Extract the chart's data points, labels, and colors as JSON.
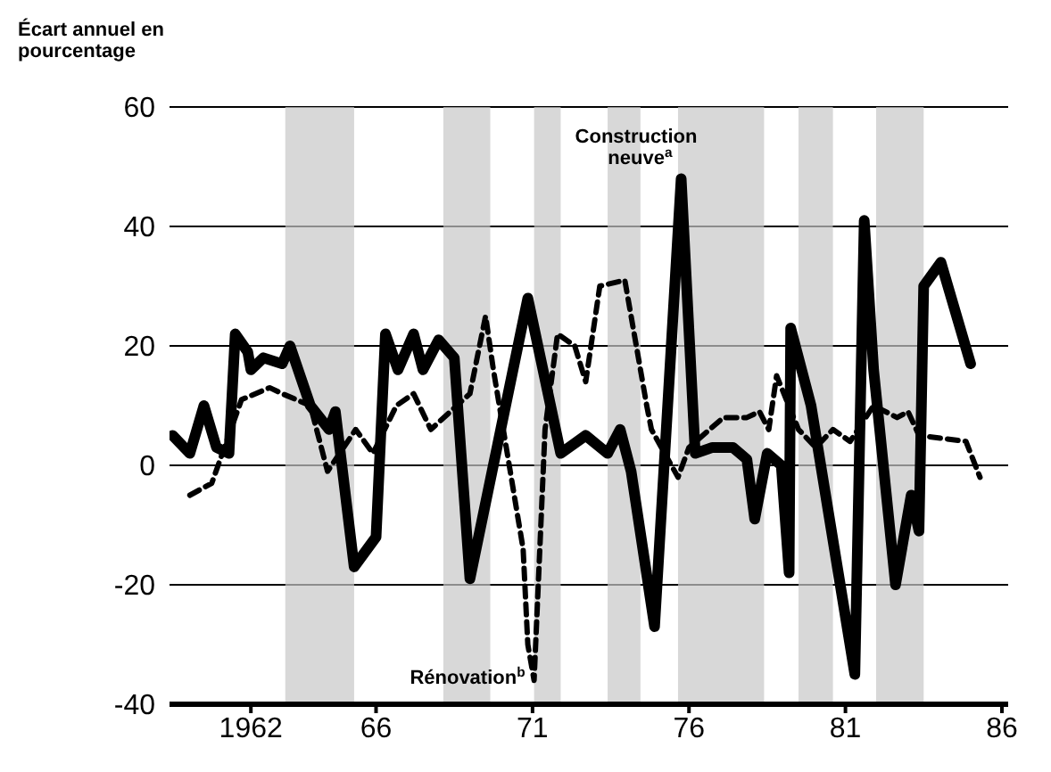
{
  "chart_data": {
    "type": "line",
    "ylabel": "Écart annuel en pourcentage",
    "xlim": [
      1959.4,
      1986.2
    ],
    "xticks": [
      1962,
      {
        "value": 1966,
        "label": "66"
      },
      {
        "value": 1971,
        "label": "71"
      },
      {
        "value": 1976,
        "label": "76"
      },
      {
        "value": 1981,
        "label": "81"
      },
      {
        "value": 1986,
        "label": "86"
      }
    ],
    "ylim": [
      -40,
      60
    ],
    "yticks": [
      -40,
      -20,
      0,
      20,
      40,
      60
    ],
    "grid": "y",
    "marker": "none",
    "series": [
      {
        "color": "#000000",
        "line_style": "solid",
        "x": [
          1959.5,
          1960.05,
          1960.5,
          1960.9,
          1961.3,
          1961.5,
          1961.9,
          1962.0,
          1962.4,
          1963.0,
          1963.25,
          1963.9,
          1964.5,
          1964.7,
          1965.3,
          1966.0,
          1966.3,
          1966.7,
          1967.2,
          1967.5,
          1968.0,
          1968.5,
          1969.0,
          1970.85,
          1971.9,
          1972.7,
          1973.4,
          1973.8,
          1974.15,
          1974.9,
          1975.75,
          1976.2,
          1976.75,
          1977.4,
          1977.85,
          1978.1,
          1978.5,
          1978.95,
          1979.2,
          1979.25,
          1979.9,
          1981.3,
          1981.6,
          1981.9,
          1982.6,
          1983.1,
          1983.35,
          1983.5,
          1984.05,
          1985.0
        ],
        "values": [
          5,
          2,
          10,
          3,
          2,
          22,
          19,
          16,
          18,
          17,
          20,
          10,
          6,
          9,
          -17,
          -12,
          22,
          16,
          22,
          16,
          21,
          18,
          -19,
          28,
          2,
          5,
          2,
          6,
          -1,
          -27,
          48,
          2,
          3,
          3,
          1,
          -9,
          2,
          0,
          -18,
          23,
          10,
          -35,
          41,
          16,
          -20,
          -5,
          -11,
          30,
          34,
          17
        ]
      },
      {
        "color": "#000000",
        "line_style": "dashed",
        "x": [
          1960.05,
          1960.75,
          1961.7,
          1962.6,
          1963.0,
          1963.9,
          1964.45,
          1965.35,
          1965.9,
          1966.65,
          1967.2,
          1967.75,
          1969.0,
          1969.5,
          1969.75,
          1970.7,
          1970.85,
          1971.05,
          1971.4,
          1971.8,
          1972.35,
          1972.7,
          1973.15,
          1973.95,
          1974.35,
          1974.65,
          1974.8,
          1975.65,
          1976.0,
          1977.1,
          1977.85,
          1978.25,
          1978.55,
          1978.8,
          1979.5,
          1980.05,
          1980.6,
          1981.15,
          1981.9,
          1982.65,
          1983.0,
          1983.35,
          1984.85,
          1985.3
        ],
        "values": [
          -5,
          -3,
          11,
          13,
          12,
          10,
          -1,
          6,
          2,
          10,
          12,
          6,
          12,
          25,
          16,
          -14,
          -30,
          -36,
          6,
          22,
          20,
          14,
          30,
          31,
          19,
          10,
          6,
          -2,
          3,
          8,
          8,
          9,
          6,
          15,
          6,
          3,
          6,
          4,
          10,
          8,
          9,
          5,
          4,
          -2
        ]
      }
    ],
    "bands": [
      {
        "axis": "x",
        "from": 1963.1,
        "to": 1965.3,
        "color": "#c8c8c8"
      },
      {
        "axis": "x",
        "from": 1968.15,
        "to": 1969.65,
        "color": "#c8c8c8"
      },
      {
        "axis": "x",
        "from": 1971.05,
        "to": 1971.9,
        "color": "#c8c8c8"
      },
      {
        "axis": "x",
        "from": 1973.4,
        "to": 1974.45,
        "color": "#c8c8c8"
      },
      {
        "axis": "x",
        "from": 1975.65,
        "to": 1978.4,
        "color": "#c8c8c8"
      },
      {
        "axis": "x",
        "from": 1979.5,
        "to": 1980.6,
        "color": "#c8c8c8"
      },
      {
        "axis": "x",
        "from": 1981.98,
        "to": 1983.5,
        "color": "#c8c8c8"
      }
    ],
    "annotations": [
      {
        "text": "Construction neuve$^{a}$",
        "x": 1975.75,
        "y": 48
      },
      {
        "text": "Rénovation$^{b}$",
        "x": 1971.05,
        "y": -36
      }
    ]
  }
}
